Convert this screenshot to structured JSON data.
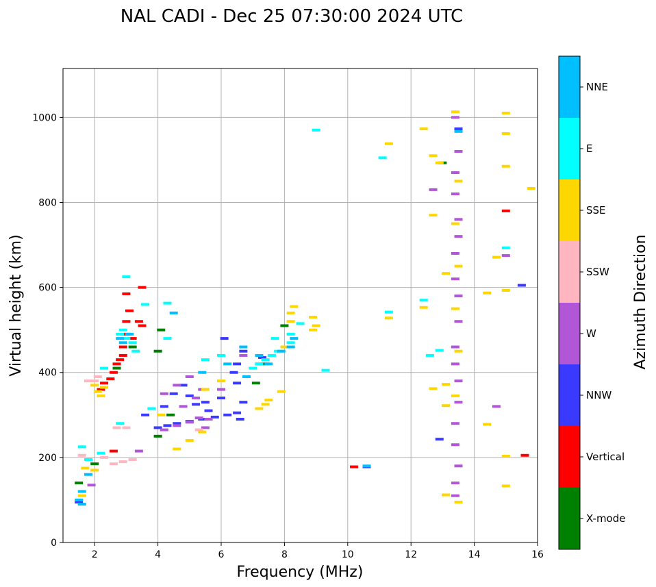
{
  "chart_data": {
    "type": "scatter",
    "title": "NAL CADI - Dec 25 07:30:00 2024 UTC",
    "xlabel": "Frequency (MHz)",
    "ylabel": "Virtual height (km)",
    "xlim": [
      1,
      16
    ],
    "ylim": [
      0,
      1115
    ],
    "xticks": [
      "2",
      "4",
      "6",
      "8",
      "10",
      "12",
      "14",
      "16"
    ],
    "yticks": [
      "0",
      "200",
      "400",
      "600",
      "800",
      "1000"
    ],
    "grid": true,
    "colorbar": {
      "label": "Azimuth Direction",
      "categories": [
        {
          "name": "X-mode",
          "color": "#008000"
        },
        {
          "name": "Vertical",
          "color": "#ff0000"
        },
        {
          "name": "NNW",
          "color": "#3a3aff"
        },
        {
          "name": "W",
          "color": "#b156d6"
        },
        {
          "name": "SSW",
          "color": "#ffb6c1"
        },
        {
          "name": "SSE",
          "color": "#ffd700"
        },
        {
          "name": "E",
          "color": "#00ffff"
        },
        {
          "name": "NNE",
          "color": "#00bfff"
        }
      ]
    },
    "series": [
      {
        "name": "Vertical",
        "points": [
          [
            2.8,
            430
          ],
          [
            2.9,
            460
          ],
          [
            3.0,
            490
          ],
          [
            3.0,
            520
          ],
          [
            3.1,
            545
          ],
          [
            3.0,
            585
          ],
          [
            2.9,
            440
          ],
          [
            2.7,
            420
          ],
          [
            2.6,
            400
          ],
          [
            2.5,
            385
          ],
          [
            2.3,
            375
          ],
          [
            3.2,
            480
          ],
          [
            3.4,
            520
          ],
          [
            3.5,
            510
          ],
          [
            2.2,
            360
          ],
          [
            2.6,
            215
          ],
          [
            3.5,
            600
          ],
          [
            15.0,
            780
          ],
          [
            15.6,
            205
          ],
          [
            10.2,
            178
          ]
        ]
      },
      {
        "name": "X-mode",
        "points": [
          [
            4.1,
            500
          ],
          [
            4.0,
            450
          ],
          [
            4.0,
            250
          ],
          [
            1.5,
            140
          ],
          [
            2.0,
            185
          ],
          [
            7.1,
            375
          ],
          [
            2.7,
            410
          ],
          [
            3.2,
            460
          ],
          [
            13.0,
            893
          ],
          [
            4.4,
            300
          ],
          [
            7.4,
            420
          ],
          [
            8.0,
            510
          ]
        ]
      },
      {
        "name": "NNW",
        "points": [
          [
            4.0,
            270
          ],
          [
            4.3,
            275
          ],
          [
            4.6,
            280
          ],
          [
            5.0,
            285
          ],
          [
            5.4,
            290
          ],
          [
            5.8,
            295
          ],
          [
            6.2,
            300
          ],
          [
            6.5,
            305
          ],
          [
            6.6,
            290
          ],
          [
            4.2,
            320
          ],
          [
            4.5,
            350
          ],
          [
            5.0,
            345
          ],
          [
            5.5,
            330
          ],
          [
            6.0,
            340
          ],
          [
            6.4,
            400
          ],
          [
            6.5,
            420
          ],
          [
            6.7,
            450
          ],
          [
            6.1,
            480
          ],
          [
            5.2,
            325
          ],
          [
            3.6,
            300
          ],
          [
            4.8,
            370
          ],
          [
            1.5,
            95
          ],
          [
            10.6,
            178
          ],
          [
            12.9,
            243
          ],
          [
            15.5,
            605
          ],
          [
            13.5,
            973
          ],
          [
            6.7,
            330
          ],
          [
            6.5,
            375
          ],
          [
            7.3,
            435
          ],
          [
            5.6,
            310
          ]
        ]
      },
      {
        "name": "W",
        "points": [
          [
            4.2,
            265
          ],
          [
            4.6,
            275
          ],
          [
            5.0,
            283
          ],
          [
            5.3,
            293
          ],
          [
            5.6,
            290
          ],
          [
            5.0,
            390
          ],
          [
            4.6,
            370
          ],
          [
            4.2,
            350
          ],
          [
            5.4,
            360
          ],
          [
            6.0,
            360
          ],
          [
            5.5,
            270
          ],
          [
            4.8,
            320
          ],
          [
            5.2,
            340
          ],
          [
            3.4,
            215
          ],
          [
            1.9,
            135
          ],
          [
            12.7,
            830
          ],
          [
            15.0,
            675
          ],
          [
            14.7,
            320
          ],
          [
            13.4,
            140
          ],
          [
            13.4,
            230
          ],
          [
            13.5,
            330
          ],
          [
            13.4,
            420
          ],
          [
            13.5,
            520
          ],
          [
            13.4,
            620
          ],
          [
            13.5,
            720
          ],
          [
            13.4,
            820
          ],
          [
            13.5,
            920
          ],
          [
            13.4,
            1000
          ],
          [
            13.4,
            460
          ],
          [
            13.5,
            380
          ],
          [
            13.4,
            280
          ],
          [
            13.5,
            580
          ],
          [
            13.4,
            680
          ],
          [
            13.5,
            760
          ],
          [
            13.4,
            870
          ],
          [
            13.5,
            180
          ],
          [
            13.4,
            110
          ],
          [
            6.7,
            440
          ],
          [
            7.2,
            420
          ]
        ]
      },
      {
        "name": "SSW",
        "points": [
          [
            2.6,
            185
          ],
          [
            2.9,
            190
          ],
          [
            3.2,
            195
          ],
          [
            2.3,
            200
          ],
          [
            1.6,
            205
          ],
          [
            3.0,
            270
          ],
          [
            2.7,
            270
          ],
          [
            5.3,
            265
          ],
          [
            2.0,
            380
          ],
          [
            2.1,
            390
          ],
          [
            1.8,
            380
          ]
        ]
      },
      {
        "name": "SSE",
        "points": [
          [
            2.0,
            370
          ],
          [
            2.1,
            355
          ],
          [
            2.3,
            365
          ],
          [
            2.2,
            345
          ],
          [
            1.6,
            110
          ],
          [
            1.7,
            175
          ],
          [
            2.0,
            170
          ],
          [
            4.6,
            220
          ],
          [
            5.0,
            240
          ],
          [
            5.4,
            260
          ],
          [
            7.2,
            315
          ],
          [
            7.4,
            325
          ],
          [
            7.5,
            335
          ],
          [
            8.2,
            520
          ],
          [
            8.2,
            540
          ],
          [
            8.3,
            555
          ],
          [
            8.9,
            500
          ],
          [
            8.9,
            530
          ],
          [
            9.0,
            510
          ],
          [
            7.9,
            355
          ],
          [
            8.0,
            460
          ],
          [
            11.3,
            938
          ],
          [
            12.4,
            973
          ],
          [
            12.7,
            910
          ],
          [
            12.7,
            770
          ],
          [
            12.7,
            362
          ],
          [
            12.4,
            553
          ],
          [
            12.9,
            893
          ],
          [
            13.1,
            633
          ],
          [
            13.4,
            1013
          ],
          [
            13.5,
            850
          ],
          [
            13.4,
            750
          ],
          [
            13.5,
            650
          ],
          [
            13.4,
            550
          ],
          [
            13.5,
            450
          ],
          [
            13.4,
            345
          ],
          [
            13.5,
            95
          ],
          [
            13.1,
            112
          ],
          [
            13.1,
            372
          ],
          [
            13.1,
            322
          ],
          [
            14.4,
            587
          ],
          [
            14.4,
            278
          ],
          [
            14.7,
            671
          ],
          [
            15.0,
            1010
          ],
          [
            15.0,
            962
          ],
          [
            15.0,
            885
          ],
          [
            15.0,
            593
          ],
          [
            15.0,
            203
          ],
          [
            15.0,
            133
          ],
          [
            15.8,
            833
          ],
          [
            11.3,
            528
          ],
          [
            6.0,
            380
          ],
          [
            5.5,
            360
          ],
          [
            4.1,
            300
          ]
        ]
      },
      {
        "name": "E",
        "points": [
          [
            3.0,
            625
          ],
          [
            2.8,
            490
          ],
          [
            3.0,
            480
          ],
          [
            3.2,
            470
          ],
          [
            3.3,
            450
          ],
          [
            2.9,
            500
          ],
          [
            7.0,
            410
          ],
          [
            7.2,
            420
          ],
          [
            7.4,
            430
          ],
          [
            7.6,
            440
          ],
          [
            7.8,
            450
          ],
          [
            8.2,
            470
          ],
          [
            8.2,
            490
          ],
          [
            8.5,
            515
          ],
          [
            7.7,
            480
          ],
          [
            9.0,
            970
          ],
          [
            9.3,
            405
          ],
          [
            11.1,
            905
          ],
          [
            11.3,
            542
          ],
          [
            12.4,
            570
          ],
          [
            12.6,
            440
          ],
          [
            12.9,
            452
          ],
          [
            15.0,
            693
          ],
          [
            1.6,
            225
          ],
          [
            1.8,
            195
          ],
          [
            2.2,
            210
          ],
          [
            2.8,
            280
          ],
          [
            3.8,
            315
          ],
          [
            5.5,
            430
          ],
          [
            6.0,
            440
          ],
          [
            2.3,
            410
          ],
          [
            3.6,
            560
          ],
          [
            4.3,
            563
          ],
          [
            4.3,
            480
          ]
        ]
      },
      {
        "name": "NNE",
        "points": [
          [
            1.6,
            120
          ],
          [
            1.5,
            100
          ],
          [
            1.8,
            160
          ],
          [
            2.8,
            480
          ],
          [
            2.9,
            470
          ],
          [
            3.1,
            490
          ],
          [
            8.3,
            480
          ],
          [
            8.2,
            460
          ],
          [
            7.9,
            450
          ],
          [
            7.5,
            420
          ],
          [
            7.2,
            440
          ],
          [
            6.7,
            460
          ],
          [
            6.8,
            390
          ],
          [
            6.2,
            420
          ],
          [
            5.4,
            400
          ],
          [
            10.6,
            180
          ],
          [
            13.5,
            967
          ],
          [
            1.6,
            90
          ],
          [
            4.5,
            540
          ]
        ]
      }
    ]
  }
}
